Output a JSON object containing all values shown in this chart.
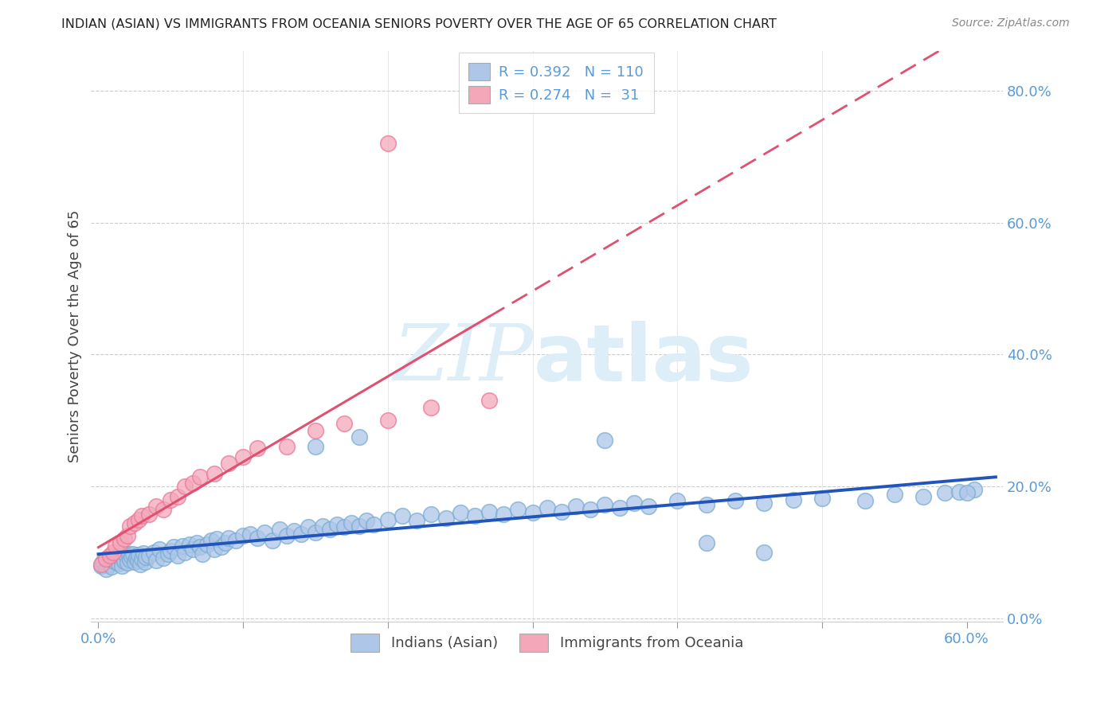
{
  "title": "INDIAN (ASIAN) VS IMMIGRANTS FROM OCEANIA SENIORS POVERTY OVER THE AGE OF 65 CORRELATION CHART",
  "source": "Source: ZipAtlas.com",
  "ylabel": "Seniors Poverty Over the Age of 65",
  "xlim": [
    -0.005,
    0.625
  ],
  "ylim": [
    -0.005,
    0.86
  ],
  "x_ticks": [
    0.0,
    0.1,
    0.2,
    0.3,
    0.4,
    0.5,
    0.6
  ],
  "x_tick_labels": [
    "0.0%",
    "",
    "",
    "",
    "",
    "",
    "60.0%"
  ],
  "y_ticks_right": [
    0.0,
    0.2,
    0.4,
    0.6,
    0.8
  ],
  "y_tick_labels_right": [
    "0.0%",
    "20.0%",
    "40.0%",
    "60.0%",
    "80.0%"
  ],
  "blue_color": "#aec6e8",
  "pink_color": "#f4a7b9",
  "blue_edge_color": "#7aadd4",
  "pink_edge_color": "#e87a9a",
  "blue_line_color": "#2255bb",
  "pink_line_color": "#e05070",
  "axis_color": "#5b9bd5",
  "watermark_color": "#ddeef8",
  "legend_blue_R": "0.392",
  "legend_blue_N": "110",
  "legend_pink_R": "0.274",
  "legend_pink_N": " 31",
  "blue_scatter_x": [
    0.002,
    0.003,
    0.005,
    0.007,
    0.008,
    0.009,
    0.01,
    0.011,
    0.012,
    0.013,
    0.014,
    0.015,
    0.016,
    0.017,
    0.018,
    0.019,
    0.02,
    0.021,
    0.022,
    0.023,
    0.024,
    0.025,
    0.026,
    0.027,
    0.028,
    0.029,
    0.03,
    0.031,
    0.032,
    0.033,
    0.035,
    0.038,
    0.04,
    0.042,
    0.045,
    0.048,
    0.05,
    0.052,
    0.055,
    0.058,
    0.06,
    0.063,
    0.065,
    0.068,
    0.07,
    0.072,
    0.075,
    0.078,
    0.08,
    0.082,
    0.085,
    0.088,
    0.09,
    0.095,
    0.1,
    0.105,
    0.11,
    0.115,
    0.12,
    0.125,
    0.13,
    0.135,
    0.14,
    0.145,
    0.15,
    0.155,
    0.16,
    0.165,
    0.17,
    0.175,
    0.18,
    0.185,
    0.19,
    0.2,
    0.21,
    0.22,
    0.23,
    0.24,
    0.25,
    0.26,
    0.27,
    0.28,
    0.29,
    0.3,
    0.31,
    0.32,
    0.33,
    0.34,
    0.35,
    0.36,
    0.37,
    0.38,
    0.4,
    0.42,
    0.44,
    0.46,
    0.48,
    0.5,
    0.53,
    0.55,
    0.57,
    0.585,
    0.595,
    0.605,
    0.15,
    0.18,
    0.35,
    0.42,
    0.46,
    0.6
  ],
  "blue_scatter_y": [
    0.08,
    0.085,
    0.075,
    0.09,
    0.082,
    0.078,
    0.088,
    0.092,
    0.086,
    0.095,
    0.083,
    0.091,
    0.079,
    0.093,
    0.087,
    0.096,
    0.084,
    0.097,
    0.089,
    0.094,
    0.098,
    0.085,
    0.092,
    0.088,
    0.096,
    0.082,
    0.09,
    0.099,
    0.086,
    0.093,
    0.095,
    0.1,
    0.088,
    0.105,
    0.092,
    0.098,
    0.102,
    0.108,
    0.095,
    0.11,
    0.1,
    0.112,
    0.105,
    0.115,
    0.108,
    0.098,
    0.112,
    0.118,
    0.105,
    0.12,
    0.108,
    0.115,
    0.122,
    0.118,
    0.125,
    0.128,
    0.122,
    0.13,
    0.118,
    0.135,
    0.125,
    0.132,
    0.128,
    0.138,
    0.13,
    0.14,
    0.135,
    0.142,
    0.138,
    0.145,
    0.14,
    0.148,
    0.142,
    0.15,
    0.155,
    0.148,
    0.158,
    0.152,
    0.16,
    0.155,
    0.162,
    0.158,
    0.165,
    0.16,
    0.168,
    0.162,
    0.17,
    0.165,
    0.172,
    0.168,
    0.175,
    0.17,
    0.178,
    0.172,
    0.178,
    0.175,
    0.18,
    0.182,
    0.178,
    0.188,
    0.185,
    0.19,
    0.192,
    0.195,
    0.26,
    0.275,
    0.27,
    0.115,
    0.1,
    0.19
  ],
  "pink_scatter_x": [
    0.002,
    0.005,
    0.008,
    0.01,
    0.012,
    0.015,
    0.018,
    0.02,
    0.022,
    0.025,
    0.028,
    0.03,
    0.035,
    0.04,
    0.045,
    0.05,
    0.055,
    0.06,
    0.065,
    0.07,
    0.08,
    0.09,
    0.1,
    0.11,
    0.13,
    0.15,
    0.17,
    0.2,
    0.23,
    0.27,
    0.2
  ],
  "pink_scatter_y": [
    0.082,
    0.09,
    0.095,
    0.1,
    0.11,
    0.115,
    0.12,
    0.125,
    0.14,
    0.145,
    0.15,
    0.155,
    0.158,
    0.17,
    0.165,
    0.18,
    0.185,
    0.2,
    0.205,
    0.215,
    0.22,
    0.235,
    0.245,
    0.258,
    0.26,
    0.285,
    0.295,
    0.3,
    0.32,
    0.33,
    0.72
  ]
}
